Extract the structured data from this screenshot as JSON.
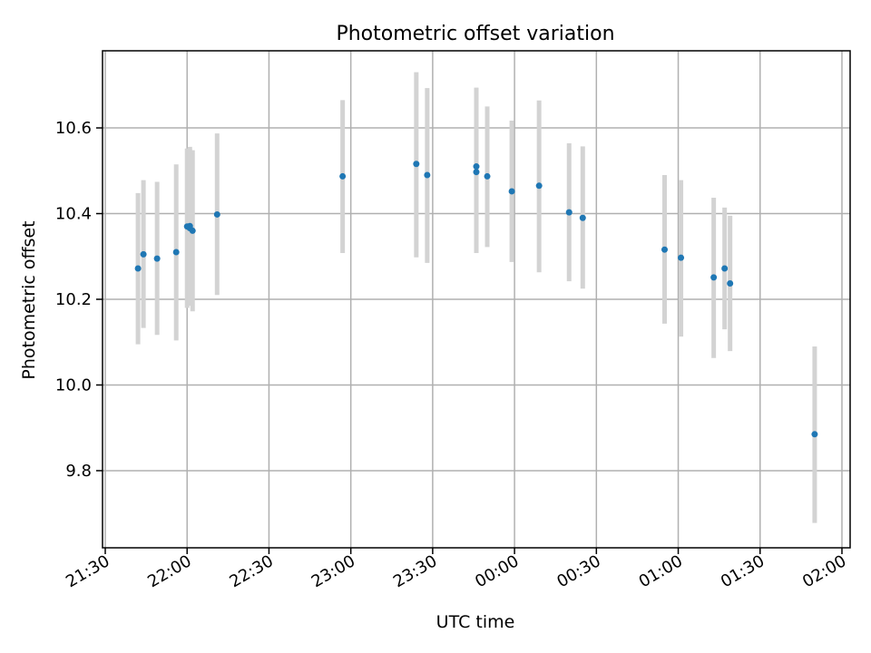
{
  "chart_data": {
    "type": "scatter",
    "title": "Photometric offset variation",
    "xlabel": "UTC time",
    "ylabel": "Photometric offset",
    "x_axis": {
      "type": "time",
      "ticks": [
        "21:30",
        "22:00",
        "22:30",
        "23:00",
        "23:30",
        "00:00",
        "00:30",
        "01:00",
        "01:30",
        "02:00"
      ],
      "range": [
        "21:29",
        "02:03"
      ]
    },
    "y_axis": {
      "ticks": [
        "9.8",
        "10.0",
        "10.2",
        "10.4",
        "10.6"
      ],
      "ylim": [
        9.62,
        10.78
      ]
    },
    "grid": true,
    "series": [
      {
        "marker_color": "#1f77b4",
        "errorbar_color": "#d3d3d3",
        "points": [
          {
            "t": "21:42",
            "y": 10.272,
            "lo": 10.095,
            "hi": 10.448
          },
          {
            "t": "21:44",
            "y": 10.305,
            "lo": 10.133,
            "hi": 10.478
          },
          {
            "t": "21:49",
            "y": 10.295,
            "lo": 10.117,
            "hi": 10.474
          },
          {
            "t": "21:56",
            "y": 10.31,
            "lo": 10.104,
            "hi": 10.515
          },
          {
            "t": "22:00",
            "y": 10.37,
            "lo": 10.18,
            "hi": 10.552
          },
          {
            "t": "22:01",
            "y": 10.366,
            "lo": 10.185,
            "hi": 10.556
          },
          {
            "t": "22:01",
            "y": 10.371,
            "lo": 10.19,
            "hi": 10.55
          },
          {
            "t": "22:02",
            "y": 10.36,
            "lo": 10.172,
            "hi": 10.548
          },
          {
            "t": "22:11",
            "y": 10.398,
            "lo": 10.21,
            "hi": 10.587
          },
          {
            "t": "22:57",
            "y": 10.487,
            "lo": 10.308,
            "hi": 10.665
          },
          {
            "t": "23:24",
            "y": 10.516,
            "lo": 10.298,
            "hi": 10.73
          },
          {
            "t": "23:28",
            "y": 10.49,
            "lo": 10.285,
            "hi": 10.693
          },
          {
            "t": "23:46",
            "y": 10.51,
            "lo": 10.308,
            "hi": 10.694
          },
          {
            "t": "23:46",
            "y": 10.497,
            "lo": 10.31,
            "hi": 10.685
          },
          {
            "t": "23:50",
            "y": 10.487,
            "lo": 10.322,
            "hi": 10.65
          },
          {
            "t": "23:59",
            "y": 10.452,
            "lo": 10.287,
            "hi": 10.617
          },
          {
            "t": "00:09",
            "y": 10.465,
            "lo": 10.263,
            "hi": 10.664
          },
          {
            "t": "00:20",
            "y": 10.403,
            "lo": 10.242,
            "hi": 10.564
          },
          {
            "t": "00:25",
            "y": 10.39,
            "lo": 10.225,
            "hi": 10.557
          },
          {
            "t": "00:55",
            "y": 10.316,
            "lo": 10.143,
            "hi": 10.49
          },
          {
            "t": "01:01",
            "y": 10.297,
            "lo": 10.113,
            "hi": 10.478
          },
          {
            "t": "01:13",
            "y": 10.251,
            "lo": 10.063,
            "hi": 10.437
          },
          {
            "t": "01:17",
            "y": 10.272,
            "lo": 10.13,
            "hi": 10.414
          },
          {
            "t": "01:19",
            "y": 10.237,
            "lo": 10.079,
            "hi": 10.395
          },
          {
            "t": "01:50",
            "y": 9.885,
            "lo": 9.678,
            "hi": 10.09
          }
        ]
      }
    ]
  }
}
